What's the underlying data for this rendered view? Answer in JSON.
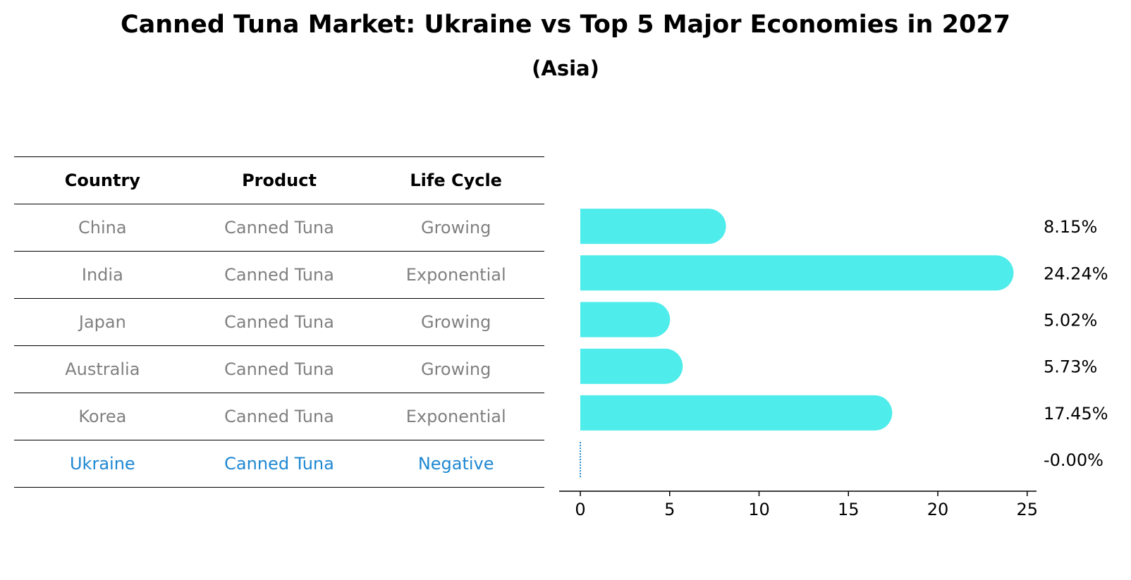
{
  "title": "Canned Tuna Market: Ukraine vs Top 5 Major Economies in 2027",
  "subtitle": "(Asia)",
  "table": {
    "headers": [
      "Country",
      "Product",
      "Life Cycle"
    ],
    "rows": [
      [
        "China",
        "Canned Tuna",
        "Growing"
      ],
      [
        "India",
        "Canned Tuna",
        "Exponential"
      ],
      [
        "Japan",
        "Canned Tuna",
        "Growing"
      ],
      [
        "Australia",
        "Canned Tuna",
        "Growing"
      ],
      [
        "Korea",
        "Canned Tuna",
        "Exponential"
      ],
      [
        "Ukraine",
        "Canned Tuna",
        "Negative"
      ]
    ],
    "highlight_row": 5
  },
  "colors": {
    "bar": "#4eeceb",
    "highlight": "#1f88d2",
    "muted_text": "#808080"
  },
  "chart_data": {
    "type": "bar",
    "orientation": "horizontal",
    "categories": [
      "China",
      "India",
      "Japan",
      "Australia",
      "Korea",
      "Ukraine"
    ],
    "values": [
      8.15,
      24.24,
      5.02,
      5.73,
      17.45,
      -0.0
    ],
    "value_labels": [
      "8.15%",
      "24.24%",
      "5.02%",
      "5.73%",
      "17.45%",
      "-0.00%"
    ],
    "xlim": [
      0,
      25
    ],
    "xticks": [
      "0",
      "5",
      "10",
      "15",
      "20",
      "25"
    ],
    "grid": false
  }
}
